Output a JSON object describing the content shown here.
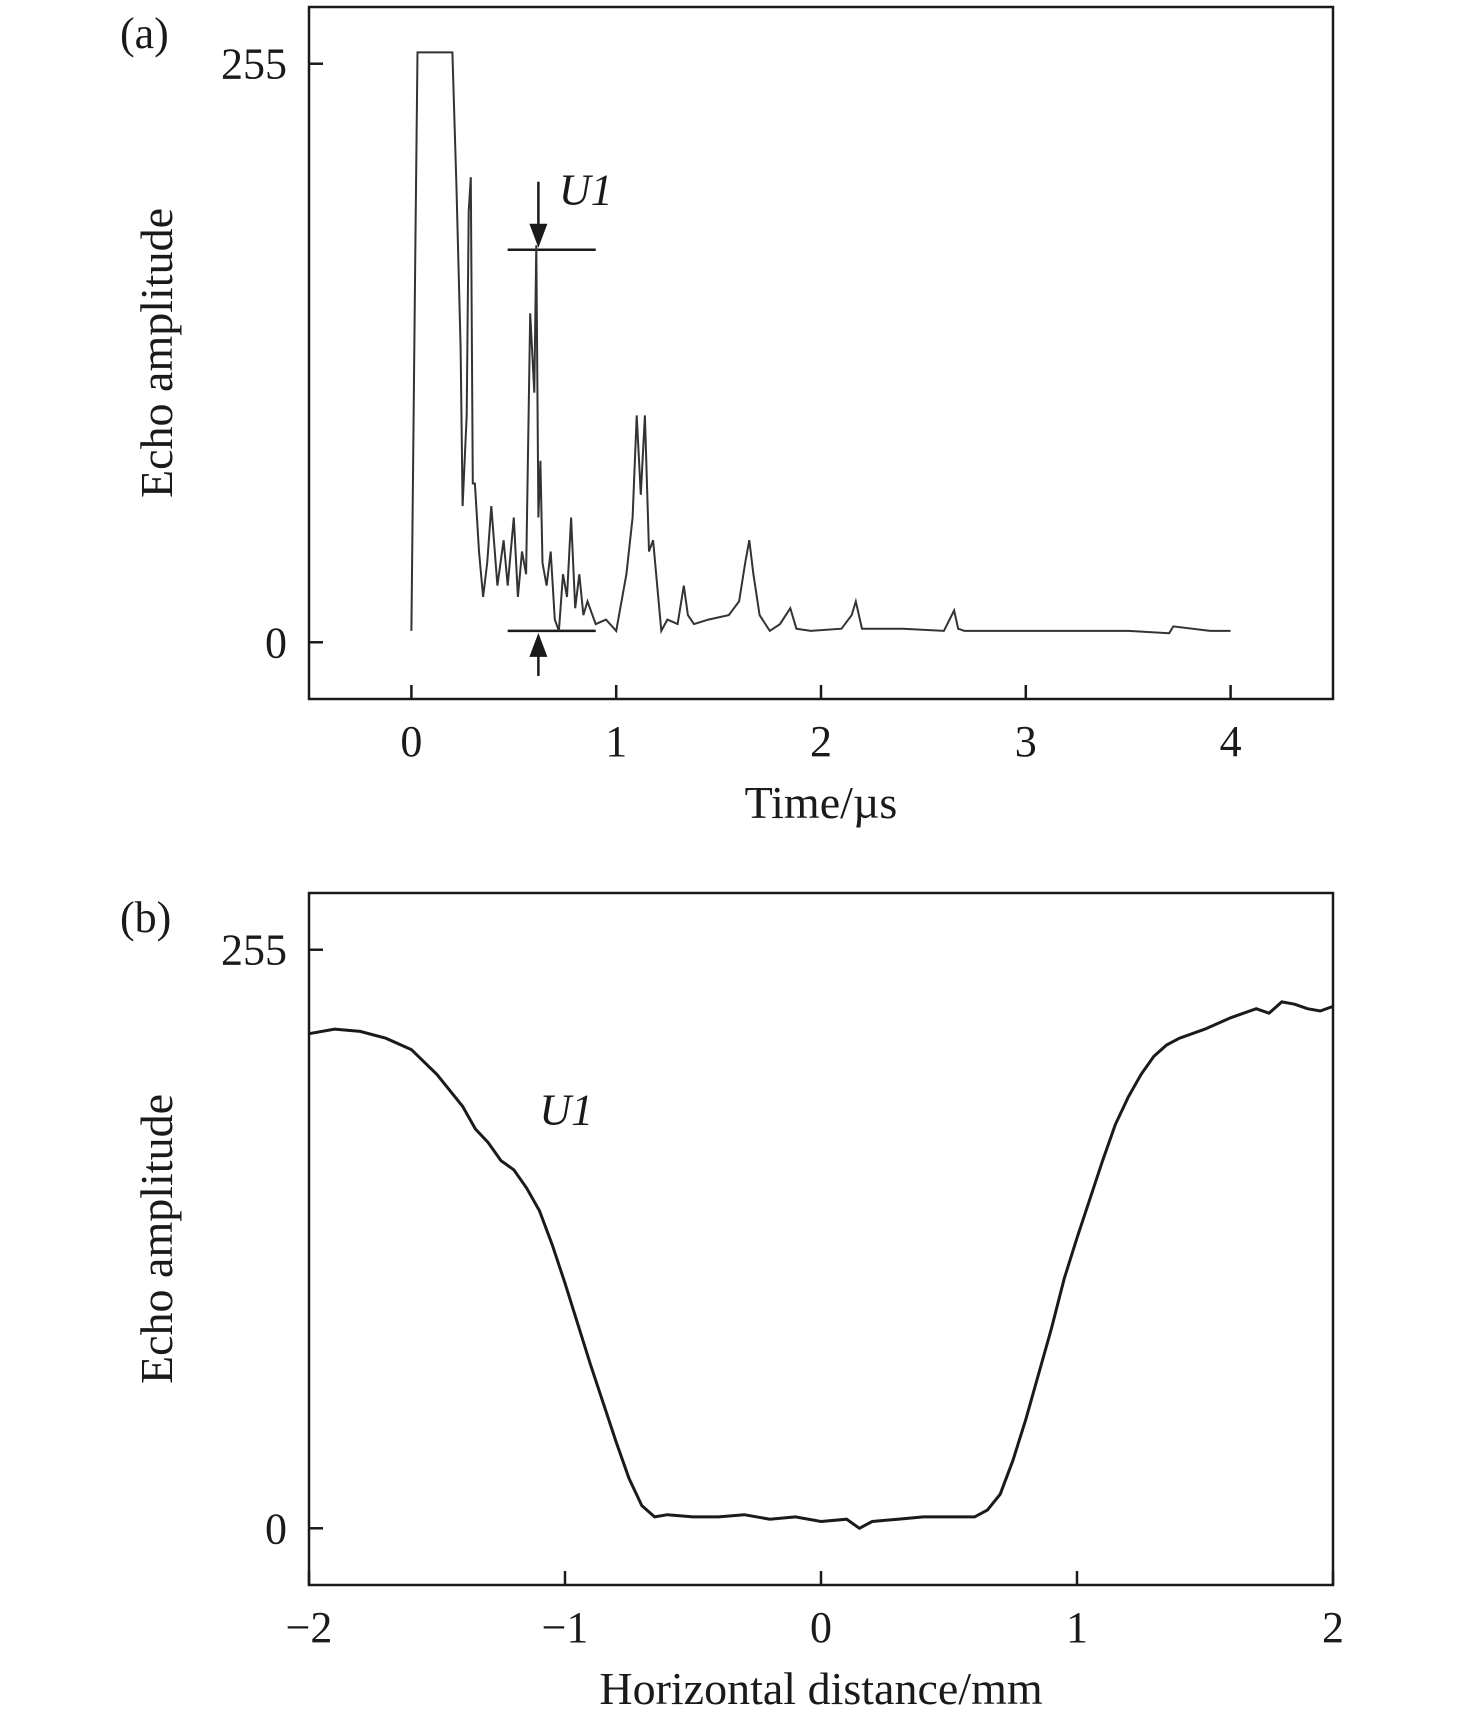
{
  "chart_data": [
    {
      "panel_label": "(a)",
      "type": "line",
      "xlabel": "Time/µs",
      "ylabel": "Echo amplitude",
      "xlim": [
        -0.5,
        4.5
      ],
      "ylim": [
        -25,
        280
      ],
      "xticks": [
        0,
        1,
        2,
        3,
        4
      ],
      "yticks": [
        0,
        255
      ],
      "grid": false,
      "color": "#333333",
      "annotations": [
        {
          "text": "U1",
          "x": 0.72,
          "y": 193
        }
      ],
      "markers": {
        "top_line_y": 173,
        "bottom_line_y": 5,
        "x_from": 0.47,
        "x_to": 0.9,
        "arrow_x": 0.62
      },
      "series": [
        {
          "x": [
            0.0,
            0.02,
            0.03,
            0.04,
            0.2,
            0.22,
            0.24,
            0.25,
            0.27,
            0.28,
            0.29,
            0.3,
            0.31,
            0.33,
            0.35,
            0.37,
            0.39,
            0.42,
            0.45,
            0.47,
            0.5,
            0.52,
            0.54,
            0.56,
            0.58,
            0.6,
            0.61,
            0.62,
            0.63,
            0.64,
            0.66,
            0.68,
            0.7,
            0.72,
            0.74,
            0.76,
            0.78,
            0.8,
            0.82,
            0.84,
            0.86,
            0.9,
            0.95,
            1.0,
            1.05,
            1.08,
            1.1,
            1.12,
            1.14,
            1.16,
            1.18,
            1.2,
            1.22,
            1.25,
            1.3,
            1.33,
            1.35,
            1.38,
            1.45,
            1.55,
            1.6,
            1.63,
            1.65,
            1.67,
            1.7,
            1.75,
            1.8,
            1.85,
            1.88,
            1.95,
            2.1,
            2.15,
            2.17,
            2.2,
            2.4,
            2.6,
            2.65,
            2.67,
            2.7,
            3.0,
            3.5,
            3.7,
            3.72,
            3.9,
            4.0
          ],
          "y": [
            5,
            180,
            260,
            260,
            260,
            200,
            130,
            60,
            100,
            190,
            205,
            70,
            70,
            40,
            20,
            35,
            60,
            25,
            45,
            25,
            55,
            20,
            40,
            30,
            145,
            110,
            175,
            55,
            80,
            35,
            25,
            40,
            10,
            5,
            30,
            20,
            55,
            15,
            30,
            12,
            18,
            8,
            10,
            5,
            30,
            55,
            100,
            65,
            100,
            40,
            45,
            25,
            5,
            10,
            8,
            25,
            12,
            8,
            10,
            12,
            18,
            35,
            45,
            30,
            12,
            5,
            8,
            15,
            6,
            5,
            6,
            12,
            18,
            6,
            6,
            5,
            14,
            6,
            5,
            5,
            5,
            4,
            7,
            5,
            5
          ]
        }
      ]
    },
    {
      "panel_label": "(b)",
      "type": "line",
      "xlabel": "Horizontal distance/mm",
      "ylabel": "Echo amplitude",
      "xlim": [
        -2,
        2
      ],
      "ylim": [
        -25,
        280
      ],
      "xticks": [
        -2,
        -1,
        0,
        1,
        2
      ],
      "yticks": [
        0,
        255
      ],
      "grid": false,
      "color": "#1a1a1a",
      "annotations": [
        {
          "text": "U1",
          "x": -1.1,
          "y": 178
        }
      ],
      "series": [
        {
          "x": [
            -2.0,
            -1.9,
            -1.8,
            -1.7,
            -1.6,
            -1.5,
            -1.45,
            -1.4,
            -1.35,
            -1.3,
            -1.25,
            -1.2,
            -1.15,
            -1.1,
            -1.05,
            -1.0,
            -0.95,
            -0.9,
            -0.85,
            -0.8,
            -0.75,
            -0.7,
            -0.65,
            -0.6,
            -0.5,
            -0.4,
            -0.3,
            -0.2,
            -0.1,
            0.0,
            0.1,
            0.15,
            0.2,
            0.3,
            0.4,
            0.5,
            0.6,
            0.65,
            0.7,
            0.75,
            0.8,
            0.85,
            0.9,
            0.95,
            1.0,
            1.05,
            1.1,
            1.15,
            1.2,
            1.25,
            1.3,
            1.35,
            1.4,
            1.5,
            1.6,
            1.7,
            1.75,
            1.8,
            1.85,
            1.9,
            1.95,
            2.0
          ],
          "y": [
            218,
            220,
            219,
            216,
            211,
            200,
            193,
            186,
            176,
            170,
            162,
            158,
            150,
            140,
            125,
            108,
            90,
            72,
            55,
            38,
            22,
            10,
            5,
            6,
            5,
            5,
            6,
            4,
            5,
            3,
            4,
            0,
            3,
            4,
            5,
            5,
            5,
            8,
            15,
            30,
            48,
            68,
            88,
            110,
            128,
            145,
            162,
            178,
            190,
            200,
            208,
            213,
            216,
            220,
            225,
            229,
            227,
            232,
            231,
            229,
            228,
            230
          ]
        }
      ]
    }
  ]
}
